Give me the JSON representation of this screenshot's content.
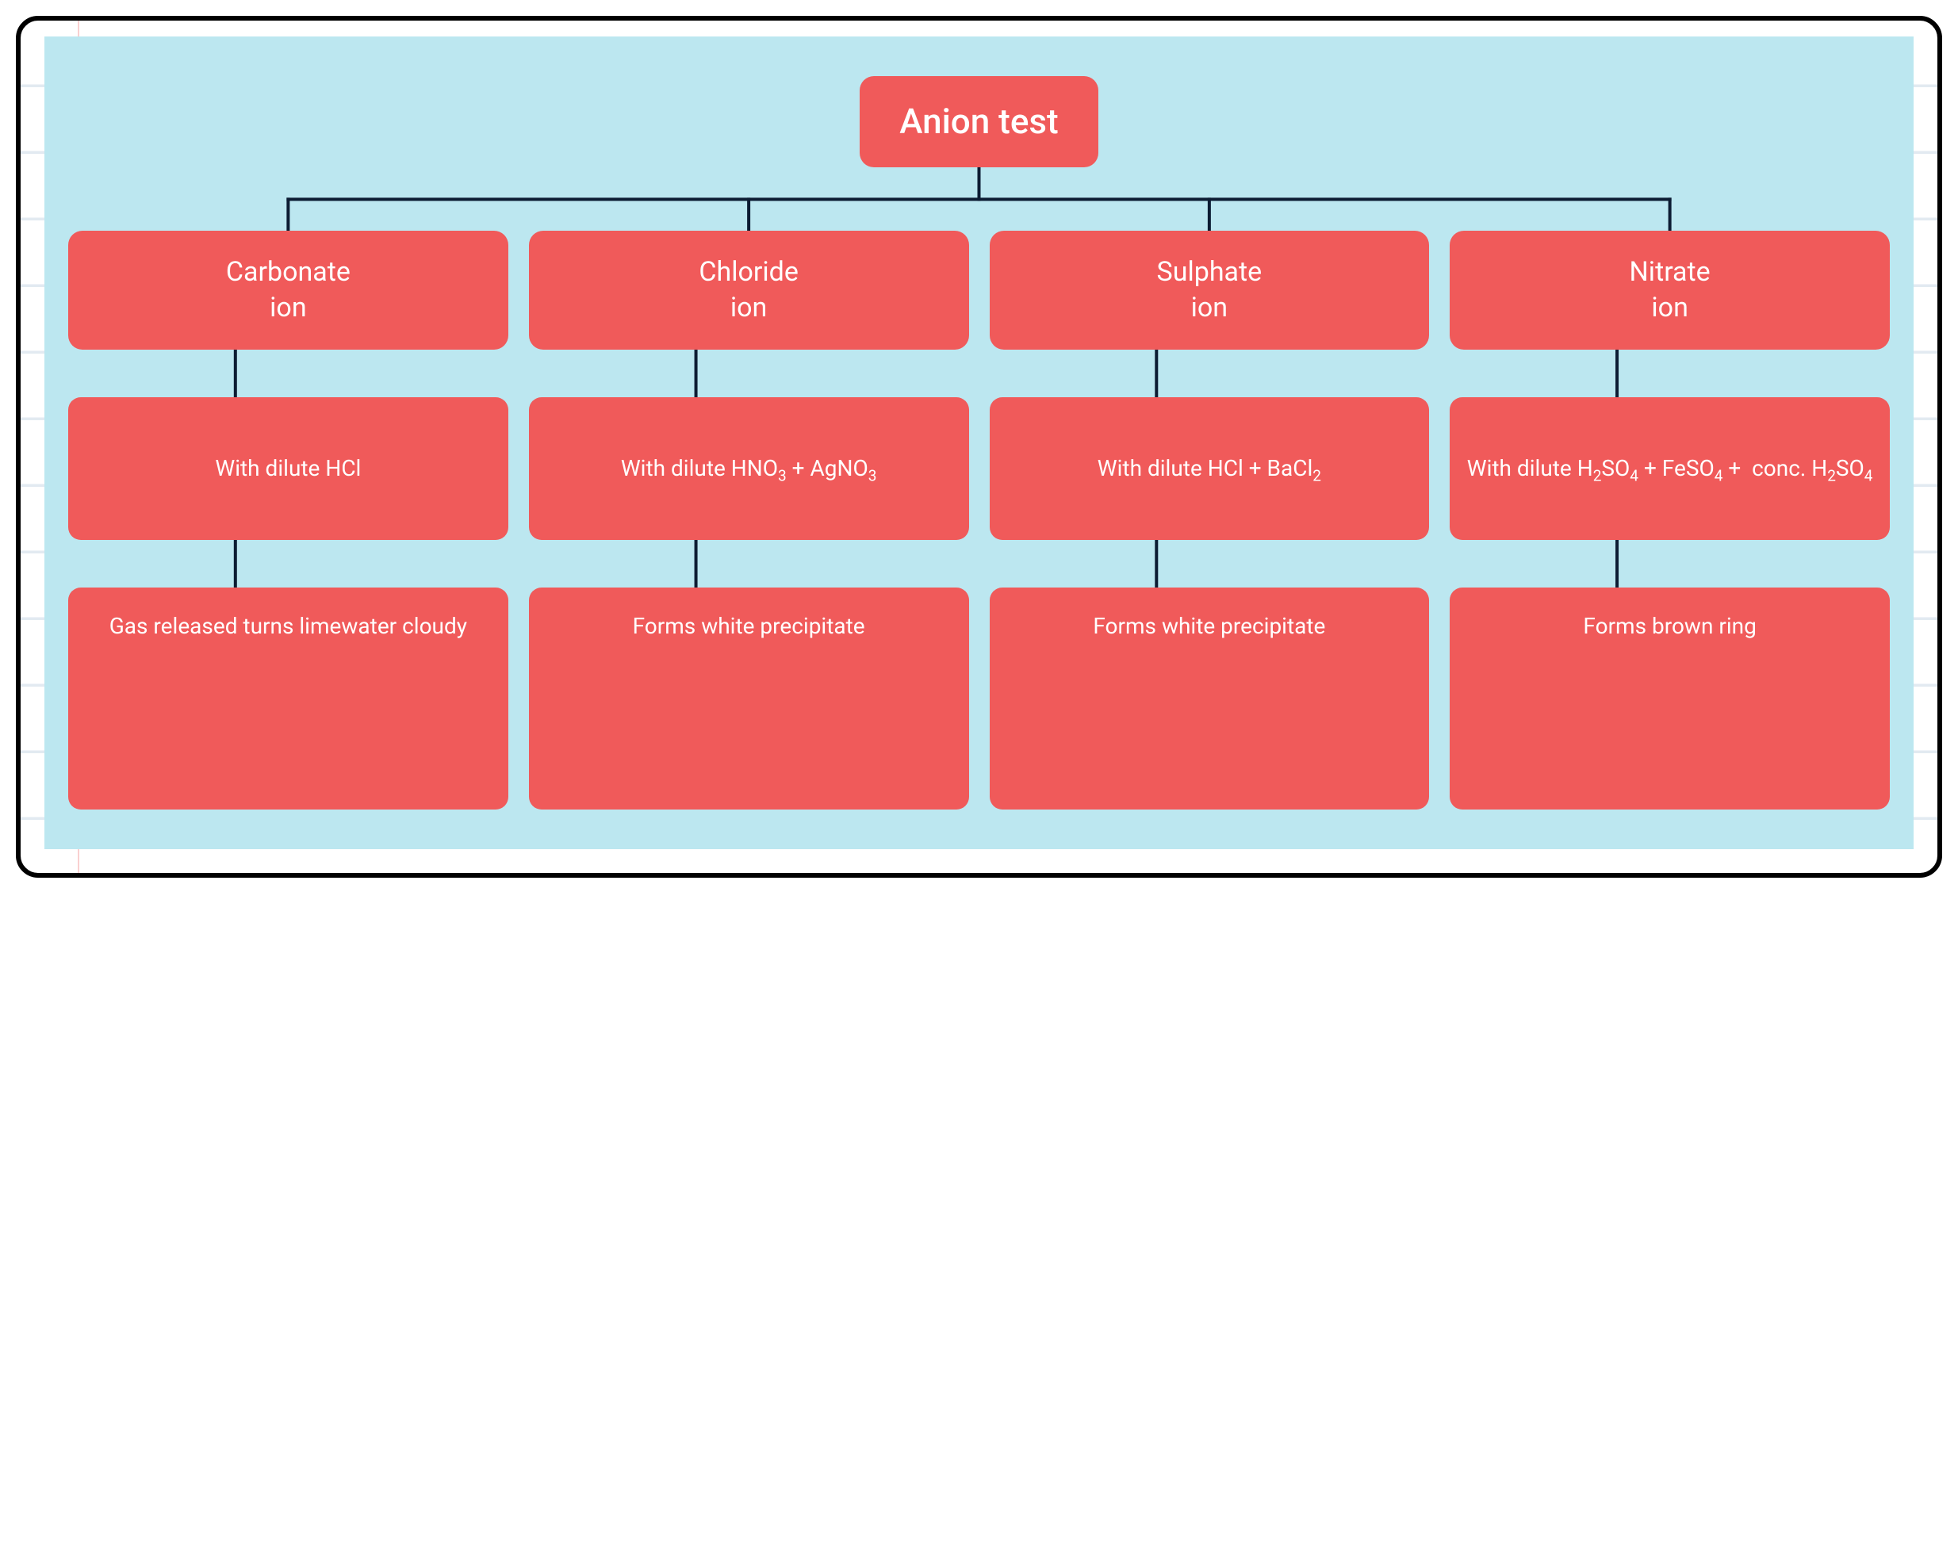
{
  "type": "tree",
  "background_color": "#bce7f0",
  "node_color": "#f05a5a",
  "node_text_color": "#ffffff",
  "connector_color": "#0c1c33",
  "connector_width": 4,
  "node_border_radius": 16,
  "page_border_color": "#000000",
  "page_border_radius": 28,
  "root": {
    "label": "Anion test",
    "fontsize": 44
  },
  "columns": [
    {
      "ion": "Carbonate ion",
      "reagent_html": "With dilute HCl",
      "result": "Gas released turns limewater cloudy",
      "result_tall": true
    },
    {
      "ion": "Chloride ion",
      "reagent_html": "With dilute HNO<sub>3</sub> + AgNO<sub>3</sub>",
      "result": "Forms white precipitate",
      "result_tall": false
    },
    {
      "ion": "Sulphate ion",
      "reagent_html": "With dilute HCl + BaCl<sub>2</sub>",
      "result": "Forms white precipitate",
      "result_tall": false
    },
    {
      "ion": "Nitrate ion",
      "reagent_html": "With dilute H<sub>2</sub>SO<sub>4</sub> + FeSO<sub>4</sub> +&nbsp; conc. H<sub>2</sub>SO<sub>4</sub>",
      "result": "Forms brown ring",
      "result_tall": false
    }
  ],
  "fontsizes": {
    "root": 44,
    "ion": 34,
    "reagent": 28,
    "result": 28
  }
}
